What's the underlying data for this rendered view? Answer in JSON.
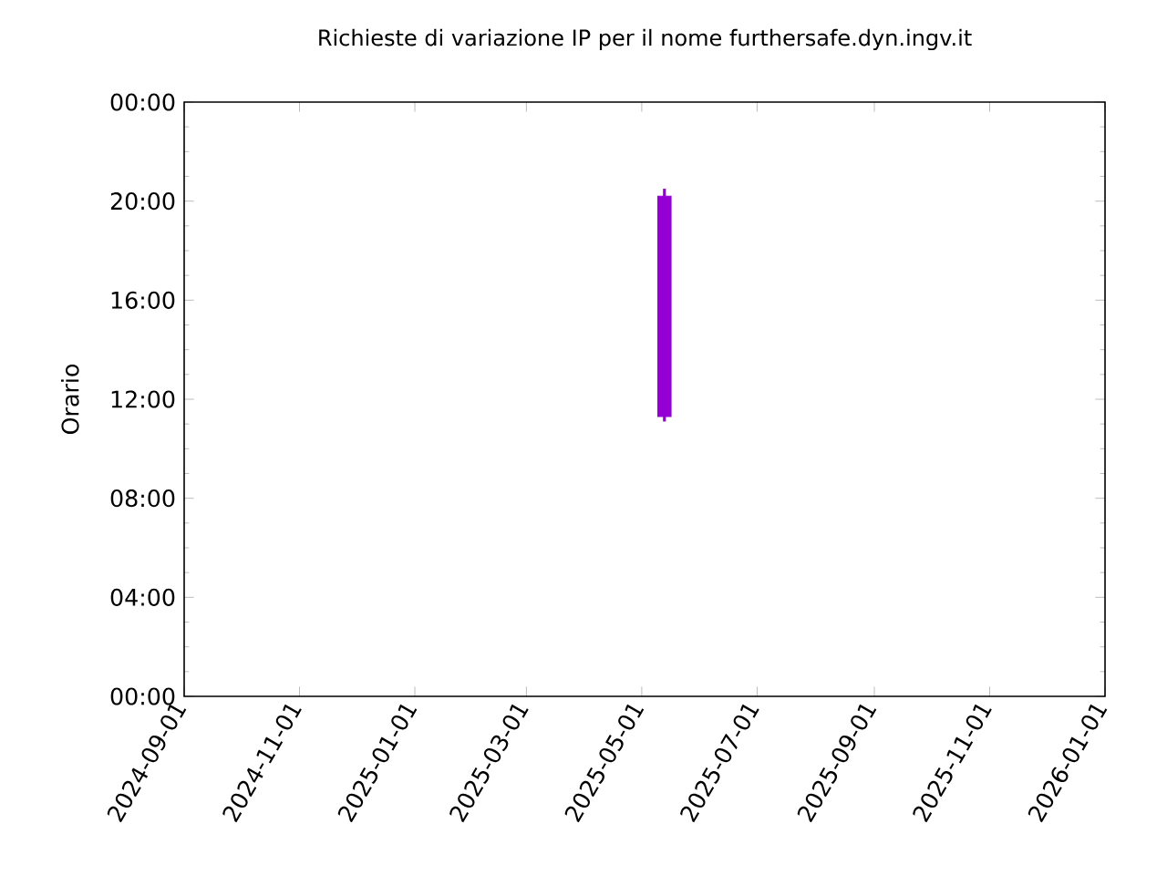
{
  "chart_data": {
    "type": "candlestick",
    "title": "Richieste di variazione IP per il nome furthersafe.dyn.ingv.it",
    "ylabel": "Orario",
    "x": [
      "2025-05-13"
    ],
    "ohlc": [
      [
        11.3,
        20.5,
        11.1,
        20.2
      ]
    ],
    "color": "#9400d3",
    "xlim": [
      "2024-09-01",
      "2026-01-01"
    ],
    "xticks": [
      "2024-09-01",
      "2024-11-01",
      "2025-01-01",
      "2025-03-01",
      "2025-05-01",
      "2025-07-01",
      "2025-09-01",
      "2025-11-01",
      "2026-01-01"
    ],
    "ylim": [
      0,
      24
    ],
    "yticks": [
      {
        "value": 0,
        "label": "00:00"
      },
      {
        "value": 4,
        "label": "04:00"
      },
      {
        "value": 8,
        "label": "08:00"
      },
      {
        "value": 12,
        "label": "12:00"
      },
      {
        "value": 16,
        "label": "16:00"
      },
      {
        "value": 20,
        "label": "20:00"
      },
      {
        "value": 24,
        "label": "00:00"
      }
    ]
  }
}
